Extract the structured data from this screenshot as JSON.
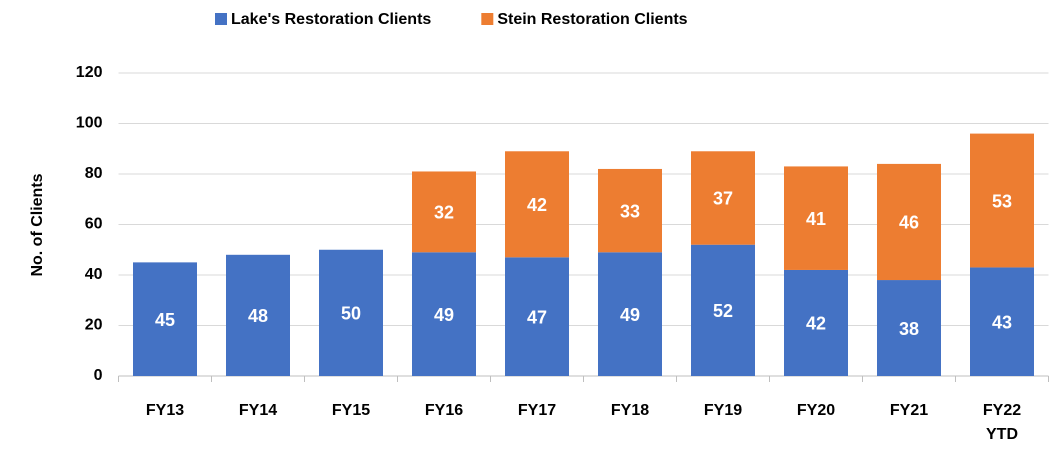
{
  "chart_data": {
    "type": "stacked_bar",
    "y_label": "No. of Clients",
    "categories": [
      "FY13",
      "FY14",
      "FY15",
      "FY16",
      "FY17",
      "FY18",
      "FY19",
      "FY20",
      "FY21",
      "FY22 YTD"
    ],
    "series": [
      {
        "name": "Lake's Restoration Clients",
        "color": "#4472c4",
        "values": [
          45,
          48,
          50,
          49,
          47,
          49,
          52,
          42,
          38,
          43
        ]
      },
      {
        "name": "Stein Restoration Clients",
        "color": "#ed7d31",
        "values": [
          null,
          null,
          null,
          32,
          42,
          33,
          37,
          41,
          46,
          53
        ]
      }
    ],
    "ylim": [
      0,
      120
    ],
    "yticks": [
      0,
      20,
      40,
      60,
      80,
      100,
      120
    ],
    "grid": true,
    "legend": "top"
  }
}
